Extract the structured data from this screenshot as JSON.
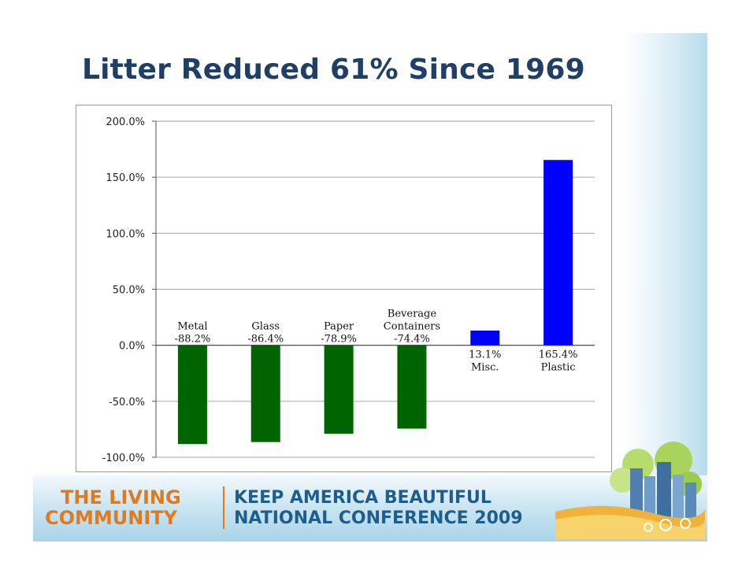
{
  "slide": {
    "title": "Litter Reduced 61% Since 1969"
  },
  "footer": {
    "brand_line1": "THE LIVING",
    "brand_line2": "COMMUNITY",
    "event_line1": "KEEP AMERICA BEAUTIFUL",
    "event_line2": "NATIONAL CONFERENCE 2009",
    "colors": {
      "brand": "#e07a1f",
      "event": "#1e5e8d"
    }
  },
  "chart_data": {
    "type": "bar",
    "categories": [
      "Metal",
      "Glass",
      "Paper",
      "Beverage Containers",
      "Misc.",
      "Plastic"
    ],
    "category_label_lines": [
      [
        "Metal"
      ],
      [
        "Glass"
      ],
      [
        "Paper"
      ],
      [
        "Beverage",
        "Containers"
      ],
      [
        "Misc."
      ],
      [
        "Plastic"
      ]
    ],
    "values": [
      -88.2,
      -86.4,
      -78.9,
      -74.4,
      13.1,
      165.4
    ],
    "data_labels": [
      "-88.2%",
      "-86.4%",
      "-78.9%",
      "-74.4%",
      "13.1%",
      "165.4%"
    ],
    "ylim": [
      -100,
      200
    ],
    "yticks": [
      200,
      150,
      100,
      50,
      0,
      -50,
      -100
    ],
    "ytick_labels": [
      "200.0%",
      "150.0%",
      "100.0%",
      "50.0%",
      "0.0%",
      "-50.0%",
      "-100.0%"
    ],
    "xlabel": "",
    "ylabel": "",
    "grid": true,
    "legend": false,
    "colors": {
      "negative": "#006400",
      "positive": "#0000ff",
      "grid": "#a6a6a6"
    }
  }
}
